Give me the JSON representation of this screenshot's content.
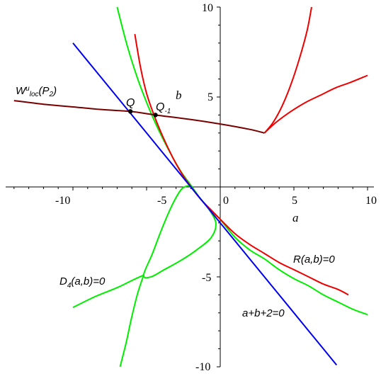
{
  "chart_data": {
    "type": "line",
    "title": "",
    "xlabel": "a",
    "ylabel": "b",
    "xlim": [
      -14,
      10
    ],
    "ylim": [
      -10,
      10
    ],
    "x_ticks": [
      -10,
      -5,
      0,
      5,
      10
    ],
    "y_ticks": [
      -10,
      -5,
      5,
      10
    ],
    "x_tick_labels": [
      "-10",
      "-5",
      "0",
      "5",
      "10"
    ],
    "y_tick_labels": [
      "-10",
      "-5",
      "5",
      "10"
    ],
    "grid": false,
    "colors": {
      "line_eq": "#0000ee",
      "resonance": "#ee0000",
      "discriminant": "#00ee00",
      "manifold": "#770000",
      "points": "#000000"
    },
    "series": [
      {
        "key": "line_eq",
        "points": [
          [
            -10,
            8
          ],
          [
            -8,
            6
          ],
          [
            -6,
            4
          ],
          [
            -4,
            2
          ],
          [
            -2,
            0
          ],
          [
            0,
            -2
          ],
          [
            2,
            -4
          ],
          [
            4,
            -6
          ],
          [
            6,
            -8
          ],
          [
            7.9,
            -9.9
          ]
        ]
      },
      {
        "key": "resonance_left",
        "points": [
          [
            -5.8,
            8.5
          ],
          [
            -5.4,
            6.6
          ],
          [
            -5.0,
            5.2
          ],
          [
            -4.5,
            4.0
          ],
          [
            -3.9,
            2.8
          ],
          [
            -3.2,
            1.6
          ],
          [
            -2.5,
            0.6
          ],
          [
            -1.8,
            -0.2
          ],
          [
            -1.2,
            -0.8
          ],
          [
            -0.6,
            -1.3
          ],
          [
            0,
            -1.8
          ]
        ]
      },
      {
        "key": "resonance_lower",
        "points": [
          [
            0,
            -1.8
          ],
          [
            1,
            -2.6
          ],
          [
            2,
            -3.2
          ],
          [
            3,
            -3.7
          ],
          [
            4,
            -4.2
          ],
          [
            5,
            -4.6
          ],
          [
            6,
            -5.0
          ],
          [
            7,
            -5.4
          ],
          [
            8,
            -5.7
          ],
          [
            8.7,
            -6.0
          ]
        ]
      },
      {
        "key": "resonance_upper_steep",
        "points": [
          [
            3.0,
            3.0
          ],
          [
            3.6,
            3.6
          ],
          [
            4.2,
            4.5
          ],
          [
            4.8,
            5.7
          ],
          [
            5.4,
            7.2
          ],
          [
            5.9,
            8.7
          ],
          [
            6.2,
            10.0
          ]
        ]
      },
      {
        "key": "resonance_upper_shallow",
        "points": [
          [
            3.0,
            3.0
          ],
          [
            3.8,
            3.6
          ],
          [
            4.8,
            4.2
          ],
          [
            5.8,
            4.7
          ],
          [
            6.8,
            5.1
          ],
          [
            7.8,
            5.5
          ],
          [
            8.8,
            5.8
          ],
          [
            10.0,
            6.2
          ]
        ]
      },
      {
        "key": "discriminant_upper",
        "points": [
          [
            -7.0,
            10.0
          ],
          [
            -6.3,
            7.8
          ],
          [
            -5.6,
            6.0
          ],
          [
            -4.9,
            4.5
          ],
          [
            -4.2,
            3.2
          ],
          [
            -3.4,
            1.9
          ],
          [
            -2.7,
            0.9
          ],
          [
            -2.0,
            0.1
          ],
          [
            -1.3,
            -0.7
          ],
          [
            -0.6,
            -1.3
          ],
          [
            0,
            -1.8
          ]
        ]
      },
      {
        "key": "discriminant_lower_branch",
        "points": [
          [
            0,
            -1.8
          ],
          [
            1,
            -2.8
          ],
          [
            2,
            -3.5
          ],
          [
            3,
            -4.0
          ],
          [
            4,
            -4.6
          ],
          [
            5,
            -5.1
          ],
          [
            6,
            -5.5
          ],
          [
            7,
            -6.0
          ],
          [
            8,
            -6.4
          ],
          [
            9,
            -6.8
          ],
          [
            10,
            -7.1
          ]
        ]
      },
      {
        "key": "discriminant_loop",
        "points": [
          [
            -2.0,
            0.1
          ],
          [
            -2.6,
            -0.1
          ],
          [
            -3.2,
            -0.9
          ],
          [
            -3.9,
            -2.2
          ],
          [
            -4.6,
            -3.7
          ],
          [
            -5.2,
            -4.9
          ],
          [
            -4.7,
            -5.0
          ],
          [
            -3.8,
            -4.6
          ],
          [
            -2.7,
            -4.1
          ],
          [
            -1.6,
            -3.5
          ],
          [
            -0.6,
            -2.8
          ],
          [
            -0.3,
            -2.0
          ],
          [
            -0.8,
            -1.2
          ],
          [
            -1.3,
            -0.7
          ]
        ]
      },
      {
        "key": "discriminant_cross_left",
        "points": [
          [
            -10.0,
            -6.7
          ],
          [
            -8.5,
            -6.1
          ],
          [
            -7.0,
            -5.6
          ],
          [
            -6.0,
            -5.2
          ],
          [
            -5.2,
            -4.9
          ]
        ]
      },
      {
        "key": "discriminant_cross_down",
        "points": [
          [
            -5.2,
            -4.9
          ],
          [
            -5.6,
            -5.9
          ],
          [
            -6.0,
            -7.2
          ],
          [
            -6.4,
            -8.7
          ],
          [
            -6.8,
            -10.0
          ]
        ]
      },
      {
        "key": "manifold",
        "points": [
          [
            -14,
            4.8
          ],
          [
            -12,
            4.6
          ],
          [
            -10,
            4.45
          ],
          [
            -8,
            4.3
          ],
          [
            -6.1,
            4.2
          ],
          [
            -4.4,
            4.0
          ],
          [
            -2,
            3.75
          ],
          [
            0,
            3.5
          ],
          [
            2,
            3.2
          ],
          [
            3.0,
            3.0
          ]
        ]
      }
    ],
    "marked_points": [
      {
        "label": "Q",
        "x": -6.1,
        "y": 4.2
      },
      {
        "label": "Q",
        "sub": "-1",
        "x": -4.4,
        "y": 4.0
      }
    ],
    "annotations": [
      {
        "text": "W",
        "sup": "u",
        "sub": "loc",
        "rest": "(P",
        "rest_sub": "2",
        "close": ")",
        "x": -13.5,
        "y": 5.6
      },
      {
        "text": "R(a,b)=0",
        "x": 4.8,
        "y": -3.3
      },
      {
        "text": "D",
        "sub": "4",
        "rest": "(a,b)=0",
        "x": -10.5,
        "y": -5.3
      },
      {
        "text": "a+b+2=0",
        "x": 1.5,
        "y": -7.2
      }
    ]
  }
}
